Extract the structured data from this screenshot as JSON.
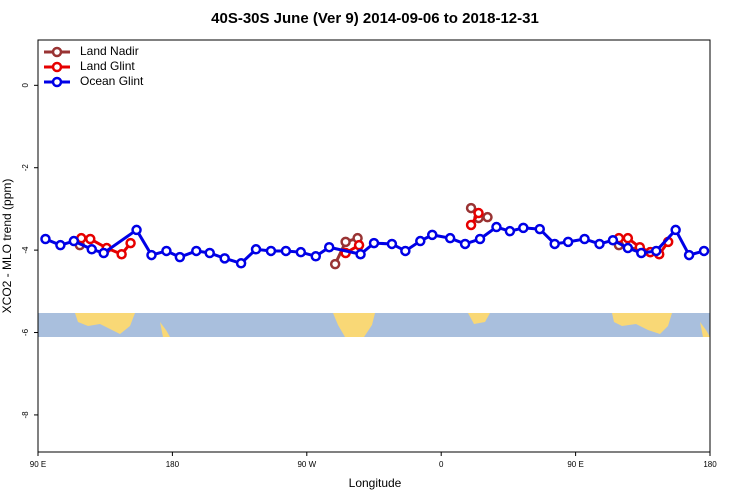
{
  "chart_data": {
    "type": "line",
    "title": "40S-30S June (Ver 9)   2014-09-06 to 2018-12-31",
    "x_label": "Longitude",
    "y_label": "XCO2 - MLO trend (ppm)",
    "xlim": [
      90,
      540
    ],
    "xticks": [
      {
        "value": 90,
        "label": "90 E"
      },
      {
        "value": 180,
        "label": "180"
      },
      {
        "value": 270,
        "label": "90 W"
      },
      {
        "value": 360,
        "label": "0"
      },
      {
        "value": 450,
        "label": "90 E"
      },
      {
        "value": 540,
        "label": "180"
      }
    ],
    "ylim": [
      -8.9,
      1.1
    ],
    "yticks": [
      0,
      -2,
      -4,
      -6,
      -8
    ],
    "legend": "top-left",
    "series": [
      {
        "name": "Land Nadir",
        "color": "#993333",
        "x": [
          118,
          null,
          289,
          296,
          304,
          null,
          380,
          385,
          391,
          null,
          479,
          500
        ],
        "values": [
          -3.88,
          null,
          -4.34,
          -3.8,
          -3.71,
          null,
          -2.98,
          -3.22,
          -3.2,
          null,
          -3.88,
          -4.05
        ]
      },
      {
        "name": "Land Glint",
        "color": "#e60000",
        "x": [
          119,
          125,
          136,
          146,
          152,
          null,
          296,
          305,
          null,
          380,
          385,
          null,
          479,
          485,
          493,
          500,
          506,
          512
        ],
        "values": [
          -3.71,
          -3.73,
          -3.95,
          -4.1,
          -3.83,
          null,
          -4.07,
          -3.88,
          null,
          -3.39,
          -3.1,
          null,
          -3.71,
          -3.71,
          -3.93,
          -4.05,
          -4.1,
          -3.8
        ]
      },
      {
        "name": "Ocean Glint",
        "color": "#0000e6",
        "x": [
          95,
          105,
          114,
          126,
          134,
          156,
          166,
          176,
          185,
          196,
          205,
          215,
          226,
          236,
          246,
          256,
          266,
          276,
          285,
          306,
          315,
          327,
          336,
          346,
          354,
          366,
          376,
          386,
          397,
          406,
          415,
          426,
          436,
          445,
          456,
          466,
          475,
          485,
          494,
          504,
          517,
          526,
          536
        ],
        "values": [
          -3.73,
          -3.88,
          -3.78,
          -3.98,
          -4.07,
          -3.51,
          -4.12,
          -4.02,
          -4.17,
          -4.02,
          -4.07,
          -4.2,
          -4.32,
          -3.98,
          -4.02,
          -4.02,
          -4.05,
          -4.15,
          -3.93,
          -4.1,
          -3.83,
          -3.85,
          -4.02,
          -3.78,
          -3.63,
          -3.71,
          -3.85,
          -3.73,
          -3.44,
          -3.54,
          -3.46,
          -3.49,
          -3.85,
          -3.8,
          -3.73,
          -3.85,
          -3.76,
          -3.95,
          -4.07,
          -4.02,
          -3.51,
          -4.12,
          -4.02
        ]
      }
    ]
  }
}
